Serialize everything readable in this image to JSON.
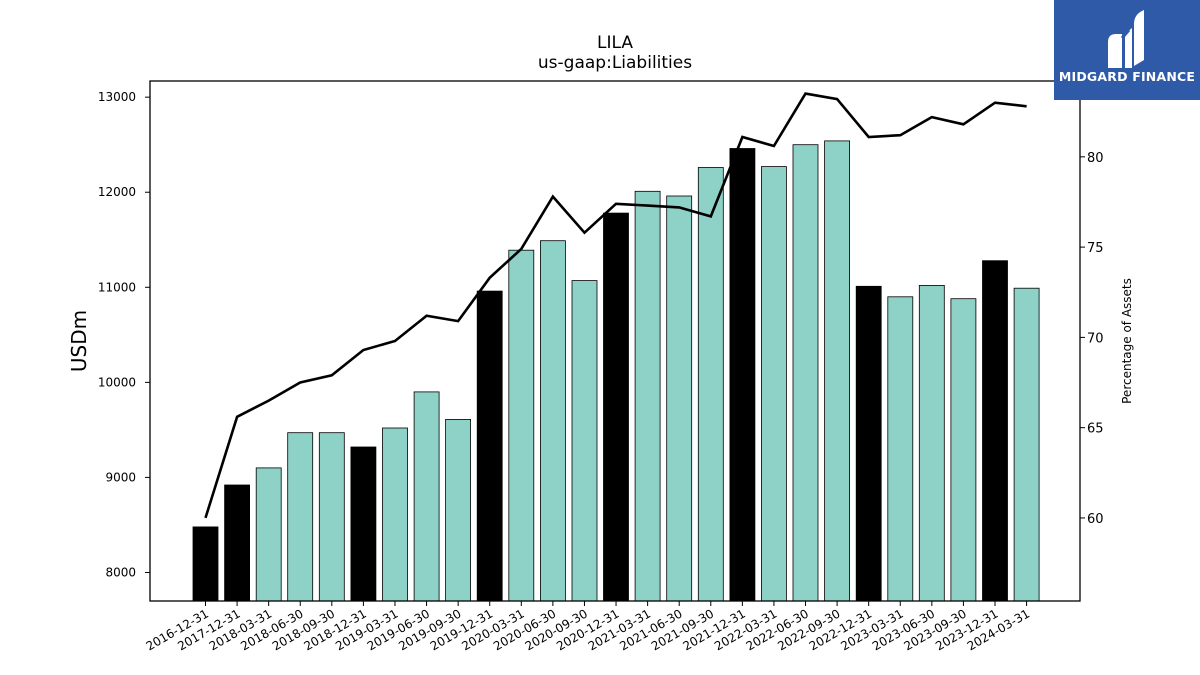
{
  "brand": {
    "name": "MIDGARD FINANCE",
    "bg_color": "#2f5aa8",
    "icon": "midgard-logo-icon"
  },
  "chart_data": {
    "type": "bar",
    "title": "LILA",
    "subtitle": "us-gaap:Liabilities",
    "ylabel": "USDm",
    "y2label": "Percentage of Assets",
    "ylim": [
      7700,
      13170
    ],
    "y2lim": [
      55.4,
      84.2
    ],
    "yticks": [
      8000,
      9000,
      10000,
      11000,
      12000,
      13000
    ],
    "y2ticks": [
      60,
      65,
      70,
      75,
      80
    ],
    "colors": {
      "annual": "#000000",
      "quarterly": "#8ed1c6",
      "line": "#000000"
    },
    "categories": [
      "2016-12-31",
      "2017-12-31",
      "2018-03-31",
      "2018-06-30",
      "2018-09-30",
      "2018-12-31",
      "2019-03-31",
      "2019-06-30",
      "2019-09-30",
      "2019-12-31",
      "2020-03-31",
      "2020-06-30",
      "2020-09-30",
      "2020-12-31",
      "2021-03-31",
      "2021-06-30",
      "2021-09-30",
      "2021-12-31",
      "2022-03-31",
      "2022-06-30",
      "2022-09-30",
      "2022-12-31",
      "2023-03-31",
      "2023-06-30",
      "2023-09-30",
      "2023-12-31",
      "2024-03-31"
    ],
    "series": [
      {
        "type": "bar",
        "values": [
          8480,
          8920,
          9100,
          9470,
          9470,
          9320,
          9520,
          9900,
          9610,
          10960,
          11390,
          11490,
          11070,
          11780,
          12010,
          11960,
          12260,
          12460,
          12270,
          12500,
          12540,
          11010,
          10900,
          11020,
          10880,
          11280,
          10990
        ],
        "annual": [
          true,
          true,
          false,
          false,
          false,
          true,
          false,
          false,
          false,
          true,
          false,
          false,
          false,
          true,
          false,
          false,
          false,
          true,
          false,
          false,
          false,
          true,
          false,
          false,
          false,
          true,
          false
        ]
      },
      {
        "type": "line",
        "axis": "right",
        "values": [
          60.0,
          65.6,
          66.5,
          67.5,
          67.9,
          69.3,
          69.8,
          71.2,
          70.9,
          73.3,
          74.9,
          77.8,
          75.8,
          77.4,
          77.3,
          77.2,
          76.7,
          81.1,
          80.6,
          83.5,
          83.2,
          81.1,
          81.2,
          82.2,
          81.8,
          83.0,
          82.8
        ]
      }
    ]
  }
}
